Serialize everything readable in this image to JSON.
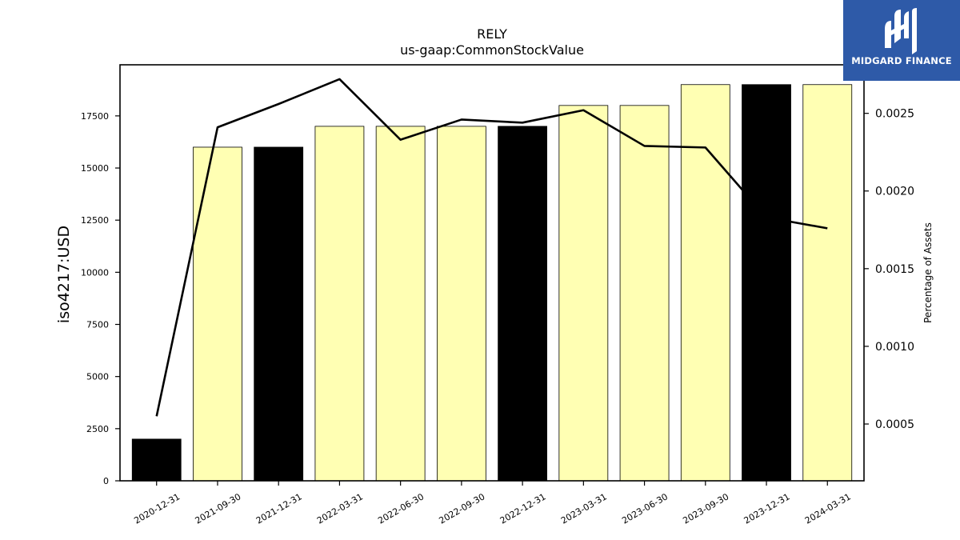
{
  "chart_data": {
    "type": "bar",
    "title": "RELY",
    "subtitle": "us-gaap:CommonStockValue",
    "ylabel": "iso4217:USD",
    "y2label": "Percentage of Assets",
    "categories": [
      "2020-12-31",
      "2021-09-30",
      "2021-12-31",
      "2022-03-31",
      "2022-06-30",
      "2022-09-30",
      "2022-12-31",
      "2023-03-31",
      "2023-06-30",
      "2023-09-30",
      "2023-12-31",
      "2024-03-31"
    ],
    "series": [
      {
        "type": "bar",
        "axis": "left",
        "values": [
          2000,
          16000,
          16000,
          17000,
          17000,
          17000,
          17000,
          18000,
          18000,
          19000,
          19000,
          19000
        ],
        "colors": [
          "#000000",
          "#ffffb3",
          "#000000",
          "#ffffb3",
          "#ffffb3",
          "#ffffb3",
          "#000000",
          "#ffffb3",
          "#ffffb3",
          "#ffffb3",
          "#000000",
          "#ffffb3"
        ]
      },
      {
        "type": "line",
        "axis": "right",
        "color": "#000000",
        "values": [
          0.00055,
          0.00241,
          0.00256,
          0.00272,
          0.00233,
          0.00246,
          0.00244,
          0.00252,
          0.00229,
          0.00228,
          0.00183,
          0.00176
        ]
      }
    ],
    "ylim": [
      0,
      19950
    ],
    "yticks": [
      0,
      2500,
      5000,
      7500,
      10000,
      12500,
      15000,
      17500
    ],
    "ytick_labels": [
      "0",
      "2500",
      "5000",
      "7500",
      "10000",
      "12500",
      "15000",
      "17500"
    ],
    "y2lim": [
      0.0001344,
      0.0028124
    ],
    "y2ticks": [
      0.0005,
      0.001,
      0.0015,
      0.002,
      0.0025
    ],
    "y2tick_labels": [
      "0.0005",
      "0.0010",
      "0.0015",
      "0.0020",
      "0.0025"
    ],
    "grid": false,
    "legend": "none"
  },
  "logo": {
    "text": "MIDGARD FINANCE",
    "icon": "midgard-logo-icon",
    "background": "#2e5aa8"
  }
}
